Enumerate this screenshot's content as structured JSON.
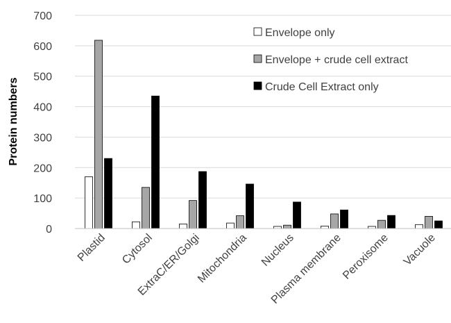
{
  "chart_data": {
    "type": "bar",
    "title": "",
    "xlabel": "",
    "ylabel": "Protein numbers",
    "ylim": [
      0,
      700
    ],
    "yticks": [
      0,
      100,
      200,
      300,
      400,
      500,
      600,
      700
    ],
    "grid": "horizontal",
    "legend_position": "top-right",
    "categories": [
      "Plastid",
      "Cytosol",
      "ExtraC/ER/Golgi",
      "Mitochondria",
      "Nucleus",
      "Plasma membrane",
      "Peroxisome",
      "Vacuole"
    ],
    "series": [
      {
        "name": "Envelope only",
        "color": "#ffffff",
        "values": [
          170,
          22,
          15,
          18,
          7,
          8,
          7,
          13
        ]
      },
      {
        "name": "Envelope + crude cell extract",
        "color": "#a6a6a6",
        "values": [
          618,
          135,
          92,
          42,
          11,
          48,
          27,
          40
        ]
      },
      {
        "name": "Crude Cell Extract only",
        "color": "#000000",
        "values": [
          230,
          435,
          187,
          146,
          87,
          61,
          43,
          25
        ]
      }
    ]
  }
}
